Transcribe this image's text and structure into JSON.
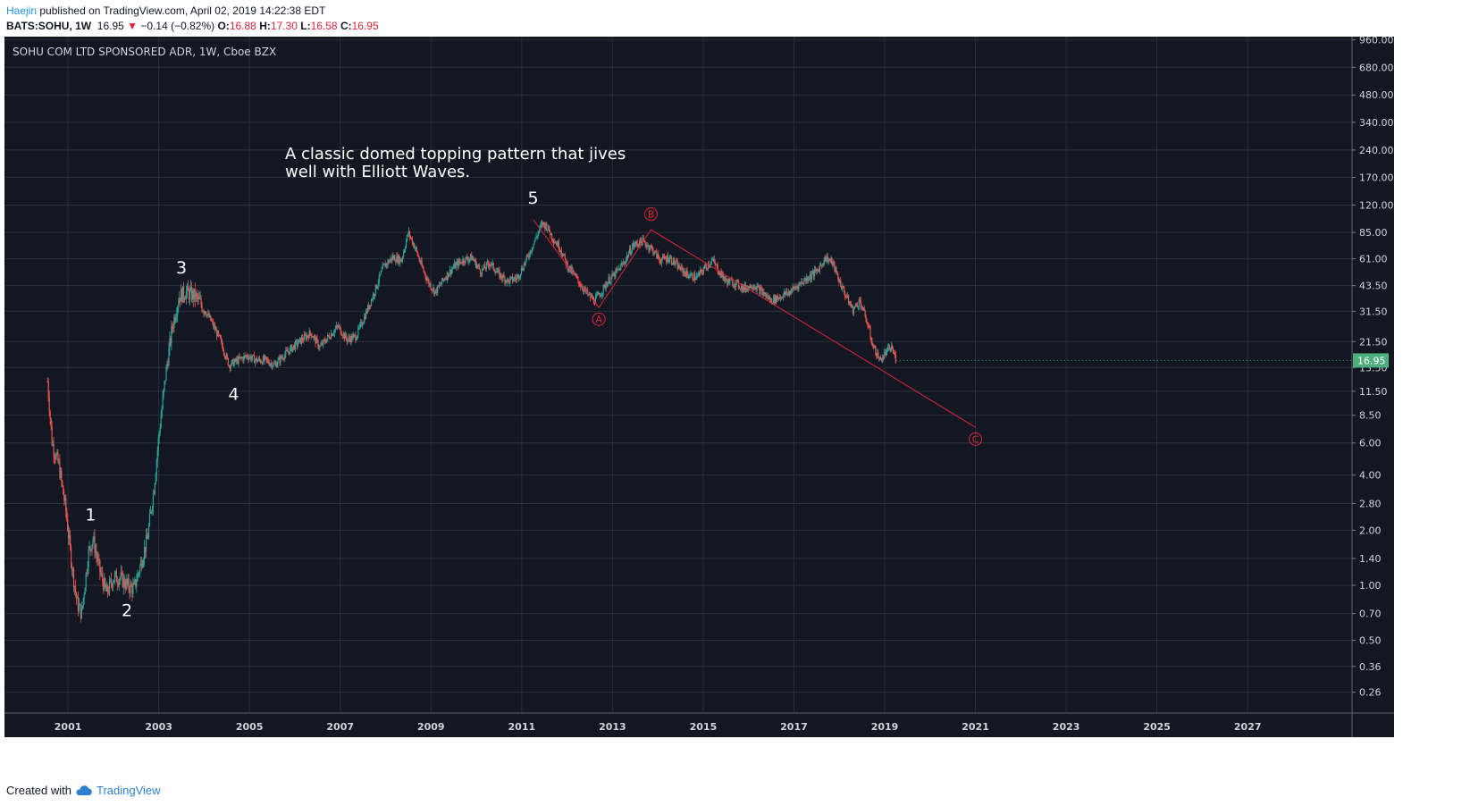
{
  "header": {
    "author": "Haejin",
    "published": "published on TradingView.com, April 02, 2019 14:22:38 EDT",
    "symbol": "BATS:SOHU, 1W",
    "last": "16.95",
    "change_arrow": "▼",
    "change": "−0.14 (−0.82%)",
    "o_label": "O:",
    "o_value": "16.88",
    "h_label": "H:",
    "h_value": "17.30",
    "l_label": "L:",
    "l_value": "16.58",
    "c_label": "C:",
    "c_value": "16.95"
  },
  "footer": {
    "created_with": "Created with",
    "brand": "TradingView",
    "brand_icon": "tradingview-cloud-icon"
  },
  "colors": {
    "background": "#131722",
    "grid": "#2a2e39",
    "text": "#d1d4dc",
    "up": "#26a69a",
    "down": "#ef5350",
    "annotation": "#e0263a",
    "last_price": "#4caf7d"
  },
  "chart_data": {
    "type": "candlestick",
    "title": "SOHU COM LTD SPONSORED ADR, 1W, Cboe BZX",
    "y_scale": "log",
    "ylim": [
      0.2,
      1000
    ],
    "xlim": [
      1999.6,
      2029.3
    ],
    "x_ticks": [
      "2001",
      "2003",
      "2005",
      "2007",
      "2009",
      "2011",
      "2013",
      "2015",
      "2017",
      "2019",
      "2021",
      "2023",
      "2025",
      "2027"
    ],
    "y_ticks": [
      "960.00",
      "680.00",
      "480.00",
      "340.00",
      "240.00",
      "170.00",
      "120.00",
      "85.00",
      "61.00",
      "43.50",
      "31.50",
      "21.50",
      "15.50",
      "11.50",
      "8.50",
      "6.00",
      "4.00",
      "2.80",
      "2.00",
      "1.40",
      "1.00",
      "0.70",
      "0.50",
      "0.36",
      "0.26"
    ],
    "last_price": 16.95,
    "last_price_label": "16.95",
    "price_path": [
      [
        2000.55,
        13
      ],
      [
        2000.65,
        6
      ],
      [
        2000.8,
        4.5
      ],
      [
        2000.95,
        2.6
      ],
      [
        2001.1,
        1.2
      ],
      [
        2001.2,
        0.8
      ],
      [
        2001.3,
        0.7
      ],
      [
        2001.45,
        1.5
      ],
      [
        2001.55,
        1.8
      ],
      [
        2001.7,
        1.2
      ],
      [
        2001.85,
        0.9
      ],
      [
        2002.0,
        1.1
      ],
      [
        2002.15,
        1.1
      ],
      [
        2002.3,
        1.0
      ],
      [
        2002.45,
        0.95
      ],
      [
        2002.6,
        1.3
      ],
      [
        2002.75,
        1.8
      ],
      [
        2002.9,
        3.5
      ],
      [
        2003.0,
        6.5
      ],
      [
        2003.15,
        14
      ],
      [
        2003.3,
        26
      ],
      [
        2003.45,
        38
      ],
      [
        2003.6,
        40
      ],
      [
        2003.8,
        38
      ],
      [
        2003.95,
        34
      ],
      [
        2004.15,
        28
      ],
      [
        2004.35,
        22
      ],
      [
        2004.55,
        16
      ],
      [
        2004.75,
        17
      ],
      [
        2004.95,
        18
      ],
      [
        2005.15,
        17
      ],
      [
        2005.35,
        17
      ],
      [
        2005.55,
        16
      ],
      [
        2005.75,
        18
      ],
      [
        2005.95,
        20
      ],
      [
        2006.15,
        22
      ],
      [
        2006.35,
        24
      ],
      [
        2006.55,
        20
      ],
      [
        2006.75,
        23
      ],
      [
        2006.95,
        26
      ],
      [
        2007.15,
        22
      ],
      [
        2007.35,
        23
      ],
      [
        2007.55,
        30
      ],
      [
        2007.75,
        40
      ],
      [
        2007.95,
        55
      ],
      [
        2008.15,
        62
      ],
      [
        2008.35,
        60
      ],
      [
        2008.5,
        85
      ],
      [
        2008.65,
        70
      ],
      [
        2008.8,
        55
      ],
      [
        2008.95,
        45
      ],
      [
        2009.1,
        40
      ],
      [
        2009.3,
        48
      ],
      [
        2009.5,
        55
      ],
      [
        2009.7,
        60
      ],
      [
        2009.9,
        62
      ],
      [
        2010.1,
        52
      ],
      [
        2010.3,
        58
      ],
      [
        2010.5,
        50
      ],
      [
        2010.7,
        46
      ],
      [
        2010.9,
        48
      ],
      [
        2011.1,
        60
      ],
      [
        2011.3,
        78
      ],
      [
        2011.45,
        95
      ],
      [
        2011.55,
        92
      ],
      [
        2011.7,
        78
      ],
      [
        2011.85,
        70
      ],
      [
        2012.0,
        56
      ],
      [
        2012.15,
        50
      ],
      [
        2012.3,
        44
      ],
      [
        2012.45,
        39
      ],
      [
        2012.6,
        36
      ],
      [
        2012.75,
        40
      ],
      [
        2012.9,
        46
      ],
      [
        2013.05,
        50
      ],
      [
        2013.25,
        58
      ],
      [
        2013.45,
        72
      ],
      [
        2013.65,
        76
      ],
      [
        2013.85,
        70
      ],
      [
        2014.05,
        60
      ],
      [
        2014.25,
        62
      ],
      [
        2014.45,
        55
      ],
      [
        2014.65,
        50
      ],
      [
        2014.85,
        48
      ],
      [
        2015.05,
        55
      ],
      [
        2015.2,
        60
      ],
      [
        2015.35,
        52
      ],
      [
        2015.5,
        46
      ],
      [
        2015.7,
        45
      ],
      [
        2015.9,
        42
      ],
      [
        2016.1,
        44
      ],
      [
        2016.3,
        40
      ],
      [
        2016.5,
        36
      ],
      [
        2016.7,
        38
      ],
      [
        2016.9,
        40
      ],
      [
        2017.1,
        44
      ],
      [
        2017.3,
        48
      ],
      [
        2017.5,
        52
      ],
      [
        2017.7,
        62
      ],
      [
        2017.85,
        58
      ],
      [
        2018.0,
        46
      ],
      [
        2018.15,
        38
      ],
      [
        2018.3,
        32
      ],
      [
        2018.45,
        36
      ],
      [
        2018.6,
        28
      ],
      [
        2018.75,
        20
      ],
      [
        2018.9,
        17
      ],
      [
        2019.05,
        19
      ],
      [
        2019.15,
        20
      ],
      [
        2019.25,
        16.95
      ]
    ],
    "annotations": {
      "note": "A classic domed topping pattern that jives well with Elliott Waves.",
      "waves": [
        {
          "label": "1",
          "x": 2001.5,
          "y": 2.4
        },
        {
          "label": "2",
          "x": 2002.3,
          "y": 0.72
        },
        {
          "label": "3",
          "x": 2003.5,
          "y": 54
        },
        {
          "label": "4",
          "x": 2004.65,
          "y": 11
        },
        {
          "label": "5",
          "x": 2011.25,
          "y": 130
        }
      ],
      "corrective": [
        {
          "label": "A",
          "x": 2012.7,
          "y": 28.5
        },
        {
          "label": "B",
          "x": 2013.85,
          "y": 107
        },
        {
          "label": "C",
          "x": 2021.0,
          "y": 6.3
        }
      ],
      "lines": [
        [
          [
            2011.25,
            100
          ],
          [
            2012.7,
            33
          ]
        ],
        [
          [
            2012.7,
            33
          ],
          [
            2013.85,
            88
          ]
        ],
        [
          [
            2013.85,
            88
          ],
          [
            2021.0,
            7.3
          ]
        ]
      ]
    }
  }
}
